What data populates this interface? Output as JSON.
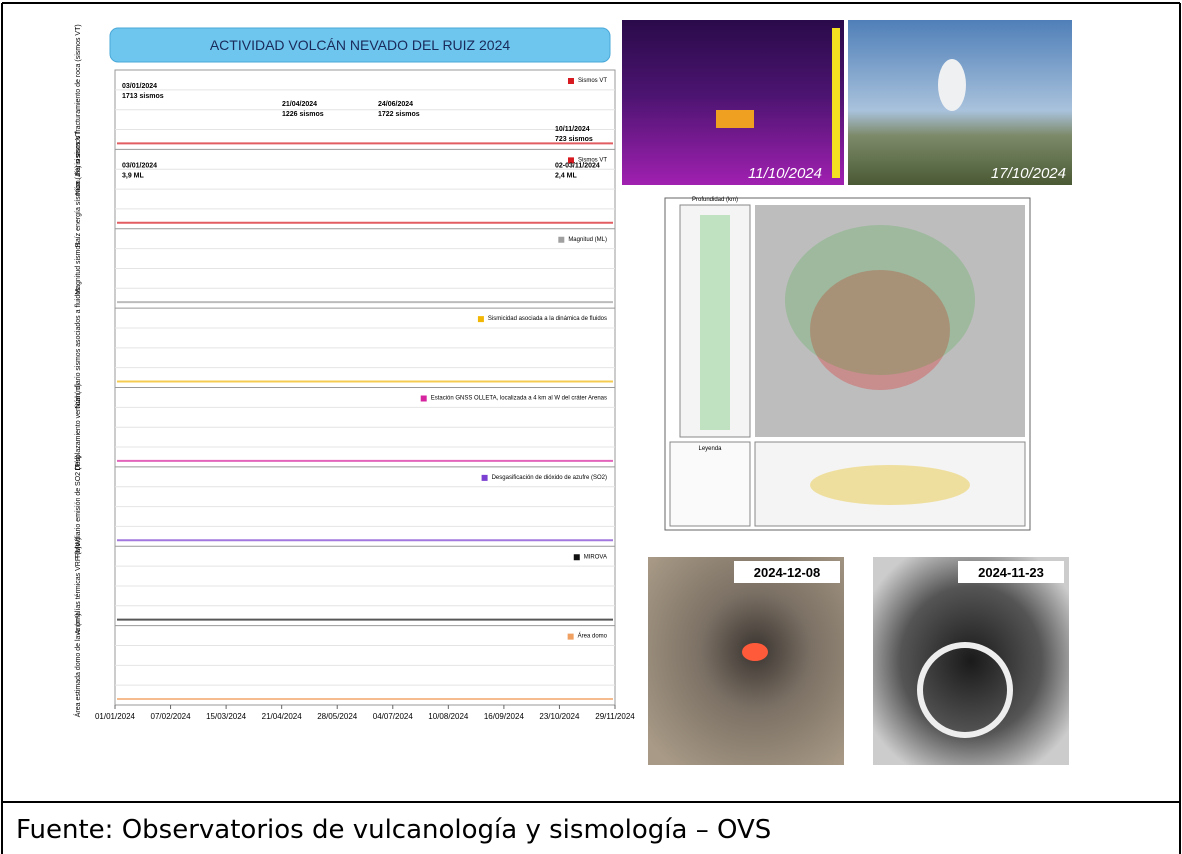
{
  "figure": {
    "title": "ACTIVIDAD VOLCÁN NEVADO DEL RUIZ 2024",
    "panels": [
      {
        "ylabel": "Núm. diario sismos fracturamiento de roca (sismos VT)",
        "legend": "Sismos VT",
        "color": "#d71920",
        "annotations": [
          "03/01/2024",
          "1713 sismos",
          "21/04/2024",
          "1226 sismos",
          "24/06/2024",
          "1722 sismos",
          "10/11/2024",
          "723 sismos"
        ]
      },
      {
        "ylabel": "Raíz energía sísmica (J½) sismos VT",
        "legend": "Sismos VT",
        "color": "#d71920",
        "annotations": [
          "03/01/2024",
          "3,9 ML",
          "02-03/11/2024",
          "2,4 ML"
        ]
      },
      {
        "ylabel": "Magnitud sismos",
        "legend": "Magnitud (ML)",
        "color": "#a0a0a0",
        "annotations": []
      },
      {
        "ylabel": "Núm. diario sismos asociados a fluidos",
        "legend": "Sismicidad asociada a la dinámica de fluidos",
        "color": "#f2b705",
        "annotations": []
      },
      {
        "ylabel": "Desplazamiento vertical (m)",
        "legend": "Estación GNSS OLLETA, localizada a 4 km al W del cráter Arenas",
        "color": "#d6249f",
        "annotations": []
      },
      {
        "ylabel": "Flujo diario emisión de SO2 (T/d)",
        "legend": "Desgasificación de dióxido de azufre (SO2)",
        "color": "#7b3fd1",
        "annotations": []
      },
      {
        "ylabel": "Anomalías térmicas VRP (MW)",
        "legend": "MIROVA",
        "color": "#111111",
        "annotations": []
      },
      {
        "ylabel": "Área estimada domo de lava (m²)",
        "legend": "Área domo",
        "color": "#f0a060",
        "annotations": []
      }
    ],
    "dates": [
      "01/01/2024",
      "07/02/2024",
      "15/03/2024",
      "21/04/2024",
      "28/05/2024",
      "04/07/2024",
      "10/08/2024",
      "16/09/2024",
      "23/10/2024",
      "29/11/2024"
    ],
    "photos": {
      "thermal": "11/10/2024",
      "camera": "17/10/2024",
      "satellite_1": "2024-12-08",
      "satellite_2": "2024-11-23"
    },
    "map": {
      "depth_label": "Profundidad (km)",
      "legend_label": "Leyenda"
    },
    "caption": "Fuente: Observatorios de vulcanología y sismología – OVS"
  }
}
